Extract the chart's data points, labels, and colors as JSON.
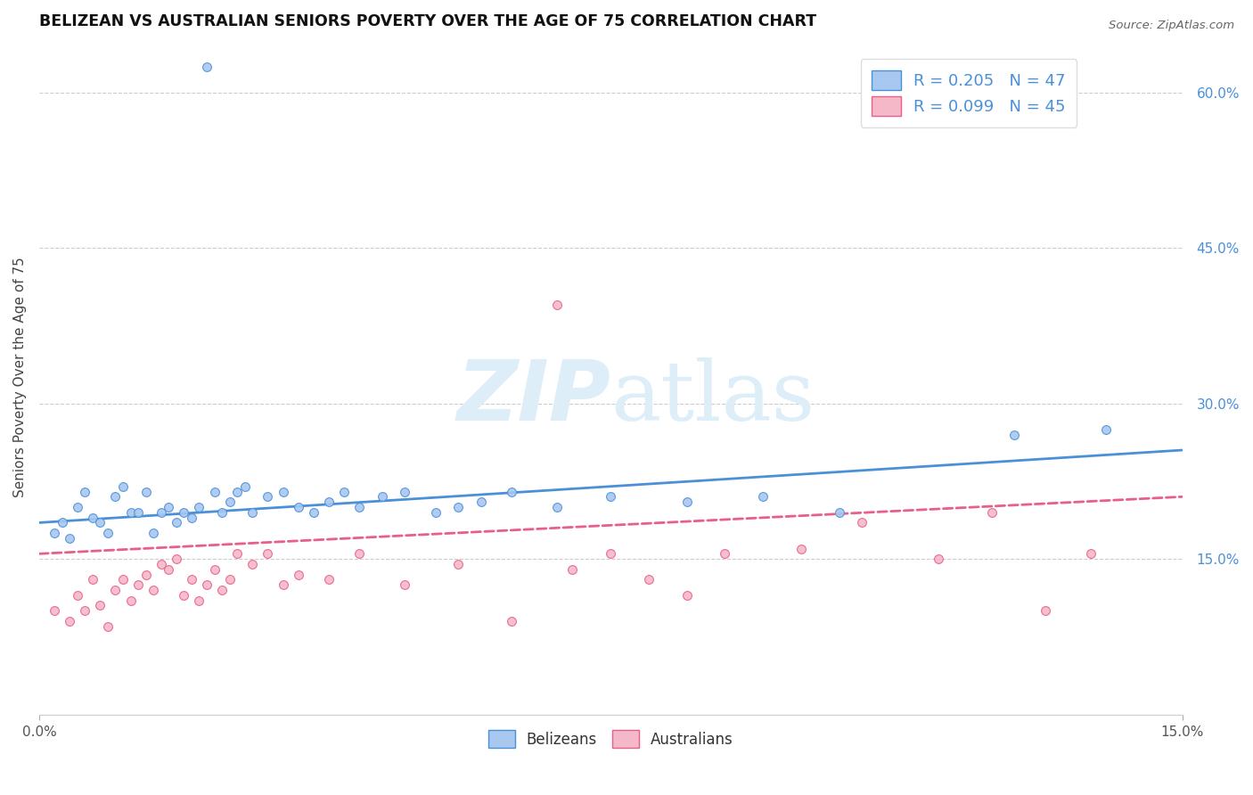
{
  "title": "BELIZEAN VS AUSTRALIAN SENIORS POVERTY OVER THE AGE OF 75 CORRELATION CHART",
  "source": "Source: ZipAtlas.com",
  "ylabel": "Seniors Poverty Over the Age of 75",
  "right_yticks": [
    "15.0%",
    "30.0%",
    "45.0%",
    "60.0%"
  ],
  "right_ytick_vals": [
    0.15,
    0.3,
    0.45,
    0.6
  ],
  "xlim": [
    0.0,
    0.15
  ],
  "ylim": [
    0.0,
    0.65
  ],
  "belizean_R": 0.205,
  "belizean_N": 47,
  "australian_R": 0.099,
  "australian_N": 45,
  "belizean_color": "#a8c8f0",
  "australian_color": "#f5b8c8",
  "belizean_line_color": "#4a90d9",
  "australian_line_color": "#e8608a",
  "watermark_color": "#ddeef8",
  "gridline_color": "#cccccc",
  "background_color": "#ffffff",
  "bel_x": [
    0.002,
    0.003,
    0.004,
    0.005,
    0.006,
    0.007,
    0.008,
    0.009,
    0.01,
    0.011,
    0.012,
    0.013,
    0.014,
    0.015,
    0.016,
    0.017,
    0.018,
    0.019,
    0.02,
    0.021,
    0.022,
    0.023,
    0.024,
    0.025,
    0.026,
    0.027,
    0.028,
    0.03,
    0.032,
    0.034,
    0.036,
    0.038,
    0.04,
    0.042,
    0.045,
    0.048,
    0.052,
    0.055,
    0.058,
    0.062,
    0.068,
    0.075,
    0.085,
    0.095,
    0.105,
    0.128,
    0.14
  ],
  "bel_y": [
    0.175,
    0.185,
    0.17,
    0.2,
    0.215,
    0.19,
    0.185,
    0.175,
    0.21,
    0.22,
    0.195,
    0.195,
    0.215,
    0.175,
    0.195,
    0.2,
    0.185,
    0.195,
    0.19,
    0.2,
    0.625,
    0.215,
    0.195,
    0.205,
    0.215,
    0.22,
    0.195,
    0.21,
    0.215,
    0.2,
    0.195,
    0.205,
    0.215,
    0.2,
    0.21,
    0.215,
    0.195,
    0.2,
    0.205,
    0.215,
    0.2,
    0.21,
    0.205,
    0.21,
    0.195,
    0.27,
    0.275
  ],
  "aus_x": [
    0.002,
    0.004,
    0.005,
    0.006,
    0.007,
    0.008,
    0.009,
    0.01,
    0.011,
    0.012,
    0.013,
    0.014,
    0.015,
    0.016,
    0.017,
    0.018,
    0.019,
    0.02,
    0.021,
    0.022,
    0.023,
    0.024,
    0.025,
    0.026,
    0.028,
    0.03,
    0.032,
    0.034,
    0.038,
    0.042,
    0.048,
    0.055,
    0.062,
    0.07,
    0.08,
    0.09,
    0.1,
    0.108,
    0.118,
    0.125,
    0.132,
    0.138,
    0.068,
    0.075,
    0.085
  ],
  "aus_y": [
    0.1,
    0.09,
    0.115,
    0.1,
    0.13,
    0.105,
    0.085,
    0.12,
    0.13,
    0.11,
    0.125,
    0.135,
    0.12,
    0.145,
    0.14,
    0.15,
    0.115,
    0.13,
    0.11,
    0.125,
    0.14,
    0.12,
    0.13,
    0.155,
    0.145,
    0.155,
    0.125,
    0.135,
    0.13,
    0.155,
    0.125,
    0.145,
    0.09,
    0.14,
    0.13,
    0.155,
    0.16,
    0.185,
    0.15,
    0.195,
    0.1,
    0.155,
    0.395,
    0.155,
    0.115
  ]
}
